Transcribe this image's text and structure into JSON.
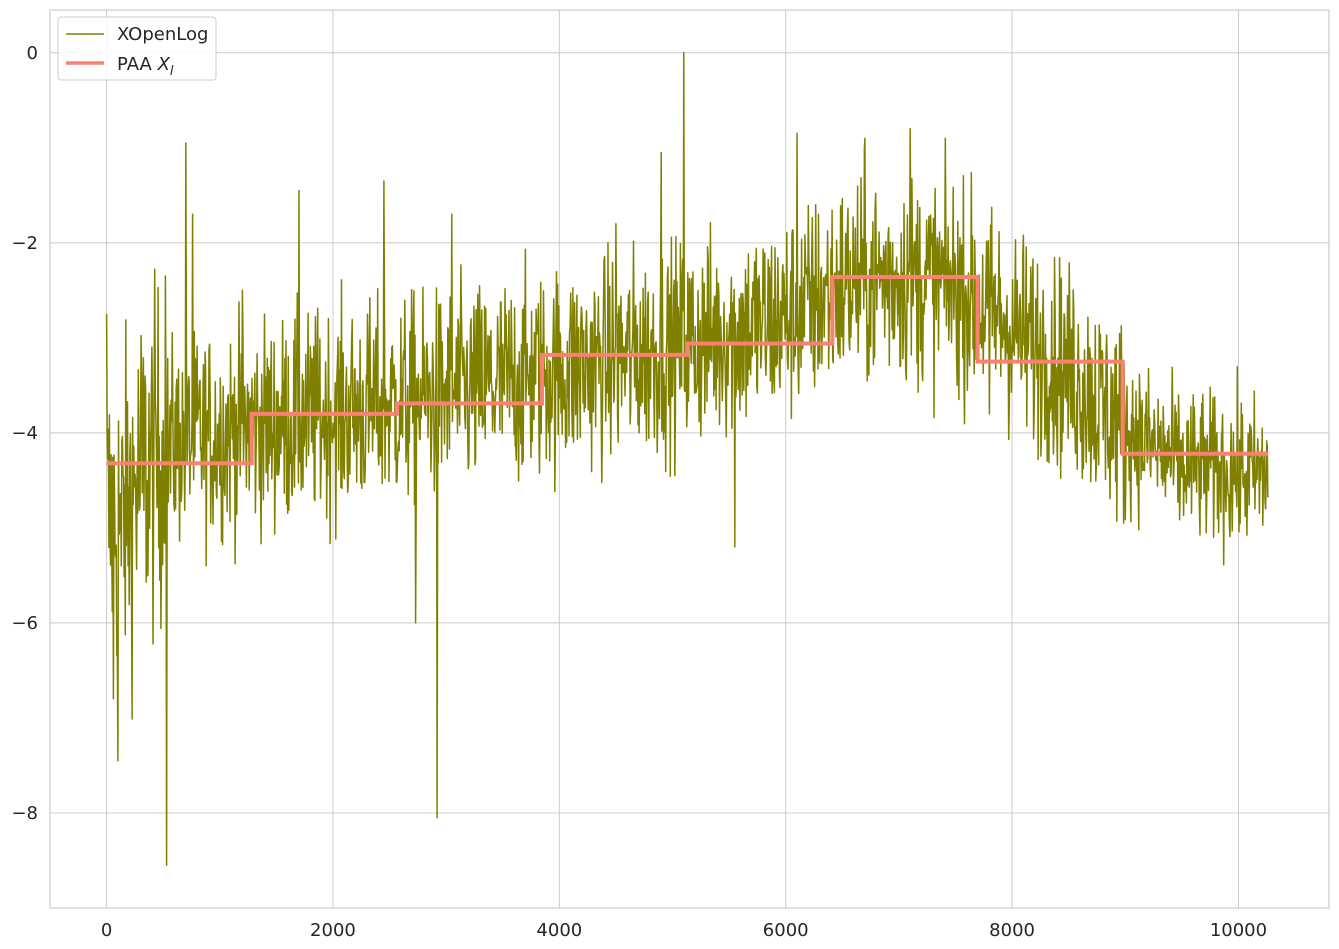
{
  "chart_data": {
    "type": "line",
    "title": "",
    "xlabel": "",
    "ylabel": "",
    "xlim": [
      -500,
      10800
    ],
    "ylim": [
      -9.0,
      0.45
    ],
    "grid": true,
    "legend_placement": "top-left",
    "x_ticks": [
      {
        "value": 0,
        "label": "0"
      },
      {
        "value": 2000,
        "label": "2000"
      },
      {
        "value": 4000,
        "label": "4000"
      },
      {
        "value": 6000,
        "label": "6000"
      },
      {
        "value": 8000,
        "label": "8000"
      },
      {
        "value": 10000,
        "label": "10000"
      }
    ],
    "y_ticks": [
      {
        "value": 0,
        "label": "0"
      },
      {
        "value": -2,
        "label": "−2"
      },
      {
        "value": -4,
        "label": "−4"
      },
      {
        "value": -6,
        "label": "−6"
      },
      {
        "value": -8,
        "label": "−8"
      }
    ],
    "series": [
      {
        "name": "XOpenLog",
        "color": "#808000",
        "x_range": [
          0,
          10260
        ],
        "trend_knots": [
          [
            0,
            -4.9
          ],
          [
            150,
            -4.9
          ],
          [
            300,
            -4.45
          ],
          [
            600,
            -4.1
          ],
          [
            1200,
            -3.95
          ],
          [
            2000,
            -3.8
          ],
          [
            3000,
            -3.6
          ],
          [
            4000,
            -3.35
          ],
          [
            5000,
            -3.1
          ],
          [
            6000,
            -2.8
          ],
          [
            6500,
            -2.45
          ],
          [
            7000,
            -2.35
          ],
          [
            7500,
            -2.45
          ],
          [
            8000,
            -2.9
          ],
          [
            8500,
            -3.35
          ],
          [
            9000,
            -3.95
          ],
          [
            9500,
            -4.35
          ],
          [
            10260,
            -4.45
          ]
        ],
        "spikes": [
          [
            0,
            -2.75
          ],
          [
            30,
            -5.1
          ],
          [
            60,
            -6.8
          ],
          [
            100,
            -7.45
          ],
          [
            130,
            -5.4
          ],
          [
            520,
            -2.35
          ],
          [
            530,
            -8.55
          ],
          [
            700,
            -0.95
          ],
          [
            760,
            -1.7
          ],
          [
            1200,
            -2.5
          ],
          [
            1700,
            -1.45
          ],
          [
            2000,
            -3.9
          ],
          [
            2450,
            -1.35
          ],
          [
            2730,
            -6.0
          ],
          [
            2920,
            -8.05
          ],
          [
            3050,
            -1.7
          ],
          [
            4500,
            -1.8
          ],
          [
            4900,
            -1.05
          ],
          [
            5100,
            0.0
          ],
          [
            5550,
            -5.2
          ],
          [
            6100,
            -0.85
          ],
          [
            6700,
            -0.9
          ],
          [
            7100,
            -0.8
          ],
          [
            7800,
            -3.8
          ]
        ]
      },
      {
        "name": "PAA X_l",
        "color": "#fa8072",
        "segments": [
          {
            "x0": 0,
            "x1": 1282,
            "y": -4.32
          },
          {
            "x0": 1282,
            "x1": 2565,
            "y": -3.8
          },
          {
            "x0": 2565,
            "x1": 3847,
            "y": -3.69
          },
          {
            "x0": 3847,
            "x1": 5130,
            "y": -3.18
          },
          {
            "x0": 5130,
            "x1": 6412,
            "y": -3.06
          },
          {
            "x0": 6412,
            "x1": 7695,
            "y": -2.36
          },
          {
            "x0": 7695,
            "x1": 8977,
            "y": -3.25
          },
          {
            "x0": 8977,
            "x1": 10260,
            "y": -4.22
          }
        ]
      }
    ]
  },
  "legend": {
    "items": [
      {
        "label": "XOpenLog",
        "color": "#808000"
      },
      {
        "label": "PAA ",
        "label_math": "X",
        "label_sub": "l",
        "color": "#fa8072"
      }
    ]
  }
}
